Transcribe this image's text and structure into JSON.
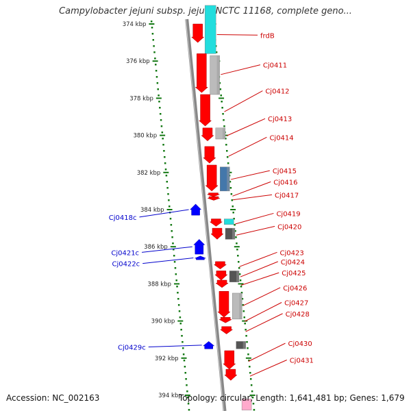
{
  "title": "Campylobacter jejuni subsp. jejuni NCTC 11168, complete geno...",
  "footer": {
    "accession": "Accession: NC_002163",
    "topology": "Topology: circular; Length: 1,641,481 bp; Genes: 1,679"
  },
  "colors": {
    "forward_gene": "#ff0000",
    "reverse_gene": "#0000ff",
    "feature_cyan": "#22dddd",
    "feature_gray": "#bbbbbb",
    "feature_dark": "#555555",
    "feature_steel": "#4477aa",
    "ruler": "#117711",
    "backbone": "#888888"
  },
  "ruler": {
    "labels": [
      "374 kbp",
      "376 kbp",
      "378 kbp",
      "380 kbp",
      "382 kbp",
      "384 kbp",
      "386 kbp",
      "388 kbp",
      "390 kbp",
      "392 kbp",
      "394 kbp"
    ]
  },
  "forward_genes": [
    {
      "label": "frdB",
      "start": 374.0,
      "end": 375.0,
      "label_kbp": 374.6
    },
    {
      "label": "Cj0411",
      "start": 375.6,
      "end": 377.7,
      "label_kbp": 376.2
    },
    {
      "label": "Cj0412",
      "start": 377.8,
      "end": 379.5,
      "label_kbp": 377.6
    },
    {
      "label": "Cj0413",
      "start": 379.6,
      "end": 380.3,
      "label_kbp": 379.1
    },
    {
      "label": "Cj0414",
      "start": 380.6,
      "end": 381.5,
      "label_kbp": 380.1
    },
    {
      "label": "Cj0415",
      "start": 381.6,
      "end": 383.0,
      "label_kbp": 381.9
    },
    {
      "label": "Cj0416",
      "start": 383.1,
      "end": 383.3,
      "label_kbp": 382.5
    },
    {
      "label": "Cj0417",
      "start": 383.3,
      "end": 383.5,
      "label_kbp": 383.2
    },
    {
      "label": "Cj0419",
      "start": 384.5,
      "end": 384.9,
      "label_kbp": 384.2
    },
    {
      "label": "Cj0420",
      "start": 385.0,
      "end": 385.6,
      "label_kbp": 384.9
    },
    {
      "label": "Cj0423",
      "start": 386.8,
      "end": 387.2,
      "label_kbp": 386.3
    },
    {
      "label": "Cj0424",
      "start": 387.3,
      "end": 387.8,
      "label_kbp": 386.8
    },
    {
      "label": "Cj0425",
      "start": 387.8,
      "end": 388.2,
      "label_kbp": 387.4
    },
    {
      "label": "Cj0426",
      "start": 388.4,
      "end": 389.8,
      "label_kbp": 388.2
    },
    {
      "label": "Cj0427",
      "start": 389.8,
      "end": 390.1,
      "label_kbp": 389.0
    },
    {
      "label": "Cj0428",
      "start": 390.3,
      "end": 390.7,
      "label_kbp": 389.6
    },
    {
      "label": "Cj0430",
      "start": 391.6,
      "end": 392.6,
      "label_kbp": 391.2
    },
    {
      "label": "Cj0431",
      "start": 392.6,
      "end": 393.2,
      "label_kbp": 392.1
    }
  ],
  "reverse_genes": [
    {
      "label": "Cj0418c",
      "start": 383.7,
      "end": 384.3,
      "label_kbp": 384.4
    },
    {
      "label": "Cj0421c",
      "start": 385.6,
      "end": 386.4,
      "label_kbp": 386.3
    },
    {
      "label": "Cj0422c",
      "start": 386.5,
      "end": 386.7,
      "label_kbp": 386.9
    },
    {
      "label": "Cj0429c",
      "start": 391.1,
      "end": 391.5,
      "label_kbp": 391.4
    }
  ],
  "unlabeled_features": [
    {
      "color": "cyan",
      "start": 373.0,
      "end": 375.6
    },
    {
      "color": "gray",
      "start": 375.7,
      "end": 377.8
    },
    {
      "color": "gray",
      "start": 379.6,
      "end": 380.2
    },
    {
      "color": "steel",
      "start": 381.7,
      "end": 383.0
    },
    {
      "color": "cyan",
      "start": 384.5,
      "end": 384.8
    },
    {
      "color": "dark",
      "start": 385.0,
      "end": 385.6
    },
    {
      "color": "dark",
      "start": 387.3,
      "end": 387.9
    },
    {
      "color": "gray",
      "start": 388.5,
      "end": 389.9
    },
    {
      "color": "dark",
      "start": 391.1,
      "end": 391.5
    },
    {
      "color": "pink",
      "start": 394.2,
      "end": 394.8
    }
  ]
}
